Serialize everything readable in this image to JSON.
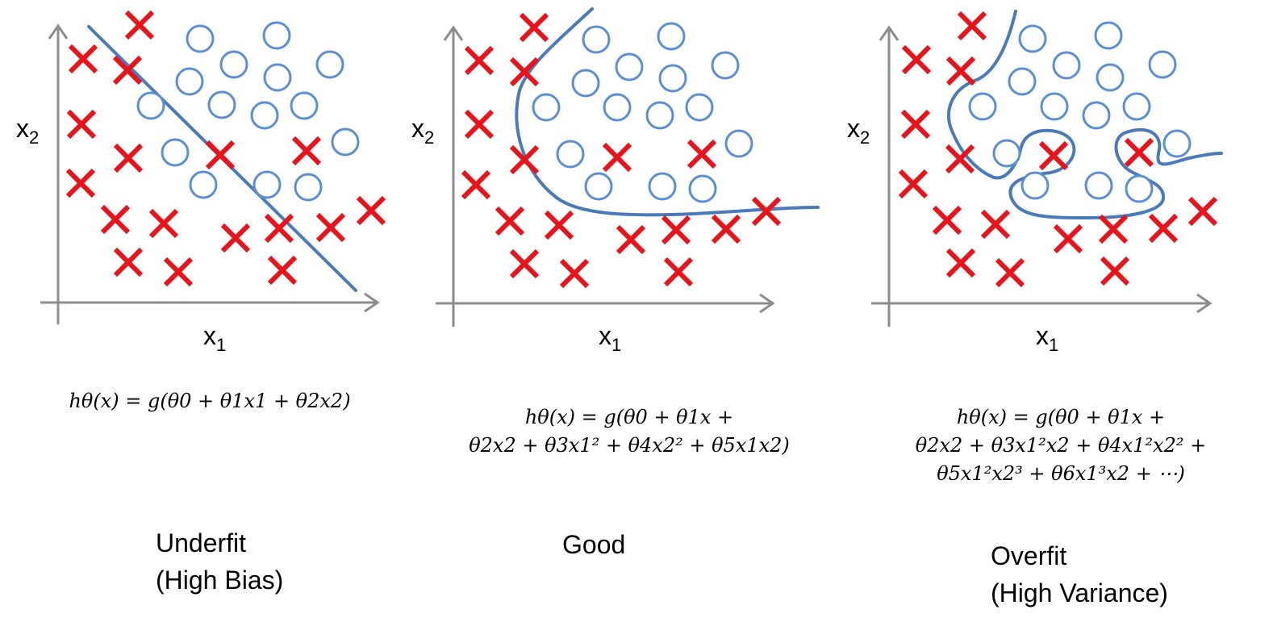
{
  "panels": [
    {
      "id": "underfit",
      "x_label": "x",
      "x_sub": "1",
      "y_label": "x",
      "y_sub": "2",
      "formula_lines": [
        "hθ(x) = g(θ0 + θ1x1 + θ2x2)"
      ],
      "caption_lines": [
        "Underfit",
        "(High Bias)"
      ]
    },
    {
      "id": "good",
      "x_label": "x",
      "x_sub": "1",
      "y_label": "x",
      "y_sub": "2",
      "formula_lines": [
        "hθ(x) = g(θ0 + θ1x +",
        "θ2x2 + θ3x1² + θ4x2² + θ5x1x2)"
      ],
      "caption_lines": [
        "Good"
      ]
    },
    {
      "id": "overfit",
      "x_label": "x",
      "x_sub": "1",
      "y_label": "x",
      "y_sub": "2",
      "formula_lines": [
        "hθ(x) = g(θ0 + θ1x +",
        "θ2x2 + θ3x1²x2 + θ4x1²x2² +",
        "θ5x1²x2³ + θ6x1³x2 + ⋯)"
      ],
      "caption_lines": [
        "Overfit",
        "(High Variance)"
      ]
    }
  ],
  "colors": {
    "cross": "#e8141c",
    "circle": "#5b8fd4",
    "boundary": "#4a7ab9",
    "axis": "#8c8c8c"
  }
}
